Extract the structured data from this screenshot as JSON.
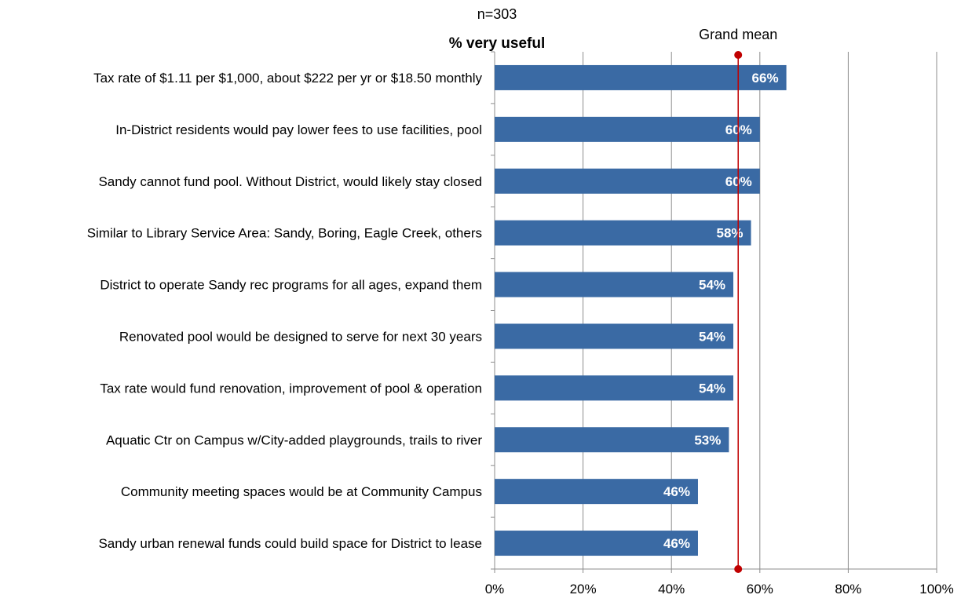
{
  "chart_data": {
    "type": "bar",
    "orientation": "horizontal",
    "subtitle": "n=303",
    "title": "% very useful",
    "categories": [
      "Tax rate of $1.11 per $1,000, about $222 per yr or $18.50 monthly",
      "In-District residents would pay lower fees to use facilities, pool",
      "Sandy cannot fund pool. Without District, would likely stay closed",
      "Similar to Library Service Area: Sandy, Boring, Eagle Creek, others",
      "District to operate Sandy rec programs for all ages, expand them",
      "Renovated pool would be designed to serve for next 30 years",
      "Tax rate would fund renovation, improvement of pool & operation",
      "Aquatic Ctr on Campus w/City-added playgrounds, trails to river",
      "Community meeting spaces would be at Community Campus",
      "Sandy urban renewal funds could build space for District to lease"
    ],
    "values": [
      66,
      60,
      60,
      58,
      54,
      54,
      54,
      53,
      46,
      46
    ],
    "value_labels": [
      "66%",
      "60%",
      "60%",
      "58%",
      "54%",
      "54%",
      "54%",
      "53%",
      "46%",
      "46%"
    ],
    "xlim": [
      0,
      100
    ],
    "x_ticks": [
      0,
      20,
      40,
      60,
      80,
      100
    ],
    "x_tick_labels": [
      "0%",
      "20%",
      "40%",
      "60%",
      "80%",
      "100%"
    ],
    "reference_line": {
      "label": "Grand mean",
      "value": 55.1,
      "color": "#c00000"
    },
    "grid": "vertical",
    "bar_color": "#3a6aa4",
    "grid_color": "#8c8c8c"
  }
}
